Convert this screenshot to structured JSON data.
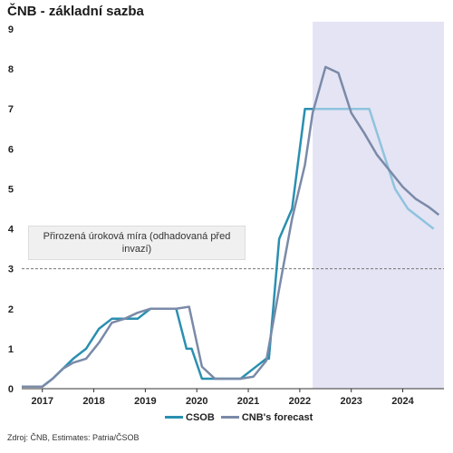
{
  "title": "ČNB - základní sazba",
  "source": "Zdroj: ČNB, Estimates: Patria/ČSOB",
  "annotation": "Přirozená úroková míra (odhadovaná před invazí)",
  "chart_data": {
    "type": "line",
    "title": "ČNB - základní sazba",
    "xlabel": "",
    "ylabel": "",
    "ylim": [
      0,
      9
    ],
    "xlim": [
      2016.6,
      2024.8
    ],
    "yticks": [
      0,
      1,
      2,
      3,
      4,
      5,
      6,
      7,
      8,
      9
    ],
    "xtick_labels": [
      "2017",
      "2018",
      "2019",
      "2020",
      "2021",
      "2022",
      "2023",
      "2024"
    ],
    "xtick_positions": [
      2017,
      2018,
      2019,
      2020,
      2021,
      2022,
      2023,
      2024
    ],
    "reference_line": {
      "y": 3,
      "style": "dashed",
      "label": "Přirozená úroková míra (odhadovaná před invazí)"
    },
    "forecast_region": {
      "x_start": 2022.25,
      "x_end": 2024.8,
      "color": "#e4e4f4"
    },
    "grid": false,
    "legend_position": "bottom-center",
    "series": [
      {
        "name": "CSOB",
        "color": "#2a8fb0",
        "color_forecast": "#8fc3de",
        "forecast_start_x": 2022.25,
        "x": [
          2016.6,
          2016.85,
          2017.0,
          2017.2,
          2017.4,
          2017.6,
          2017.85,
          2018.1,
          2018.35,
          2018.6,
          2018.85,
          2019.1,
          2019.35,
          2019.6,
          2019.8,
          2019.9,
          2020.1,
          2020.35,
          2020.6,
          2020.85,
          2021.1,
          2021.35,
          2021.4,
          2021.6,
          2021.85,
          2022.1,
          2022.25,
          2022.5,
          2022.75,
          2023.0,
          2023.15,
          2023.35,
          2023.6,
          2023.85,
          2024.1,
          2024.35,
          2024.6
        ],
        "y": [
          0.05,
          0.05,
          0.05,
          0.25,
          0.5,
          0.75,
          1.0,
          1.5,
          1.75,
          1.75,
          1.75,
          2.0,
          2.0,
          2.0,
          1.0,
          1.0,
          0.25,
          0.25,
          0.25,
          0.25,
          0.5,
          0.75,
          0.75,
          3.75,
          4.5,
          7.0,
          7.0,
          7.0,
          7.0,
          7.0,
          7.0,
          7.0,
          6.0,
          5.0,
          4.5,
          4.25,
          4.0
        ]
      },
      {
        "name": "CNB's forecast",
        "color": "#7a8aa8",
        "x": [
          2016.6,
          2016.85,
          2017.0,
          2017.2,
          2017.4,
          2017.6,
          2017.85,
          2018.1,
          2018.35,
          2018.6,
          2018.85,
          2019.1,
          2019.35,
          2019.6,
          2019.85,
          2020.1,
          2020.35,
          2020.6,
          2020.85,
          2021.1,
          2021.35,
          2021.6,
          2021.85,
          2022.1,
          2022.25,
          2022.5,
          2022.75,
          2023.0,
          2023.25,
          2023.5,
          2023.75,
          2024.0,
          2024.25,
          2024.5,
          2024.7
        ],
        "y": [
          0.05,
          0.05,
          0.05,
          0.25,
          0.5,
          0.65,
          0.75,
          1.15,
          1.65,
          1.75,
          1.9,
          2.0,
          2.0,
          2.0,
          2.05,
          0.55,
          0.25,
          0.25,
          0.25,
          0.3,
          0.7,
          2.5,
          4.25,
          5.6,
          6.9,
          8.05,
          7.9,
          6.9,
          6.4,
          5.85,
          5.45,
          5.05,
          4.75,
          4.55,
          4.35
        ]
      }
    ]
  }
}
